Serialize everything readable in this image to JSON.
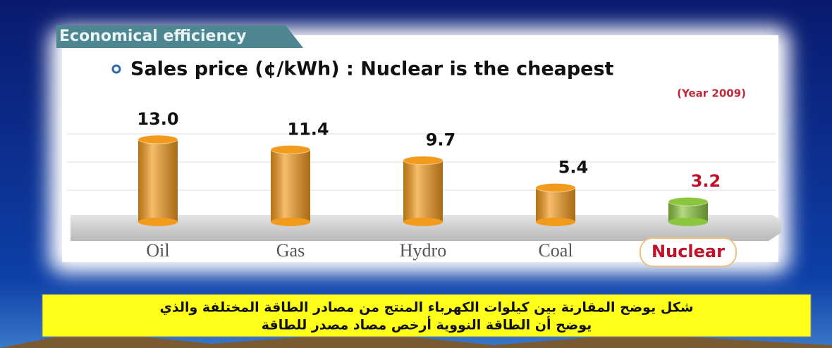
{
  "tab": "Economical efficiency",
  "chart_data": {
    "type": "bar",
    "title": "Sales price (¢/kWh) : Nuclear is the cheapest",
    "subtitle": "(Year 2009)",
    "categories": [
      "Oil",
      "Gas",
      "Hydro",
      "Coal",
      "Nuclear"
    ],
    "values": [
      13.0,
      11.4,
      9.7,
      5.4,
      3.2
    ],
    "value_labels": [
      "13.0",
      "11.4",
      "9.7",
      "5.4",
      "3.2"
    ],
    "colors": [
      "#f29a1c",
      "#f29a1c",
      "#f29a1c",
      "#f29a1c",
      "#8cc63f"
    ],
    "ylim": [
      0,
      15
    ]
  },
  "caption": [
    "شكل يوضح المقارنة بين كيلوات الكهرباء المنتج من مصادر الطاقة المختلفة والذي",
    "يوضح أن الطاقة النووية أرخص مصاد مصدر للطاقة"
  ]
}
